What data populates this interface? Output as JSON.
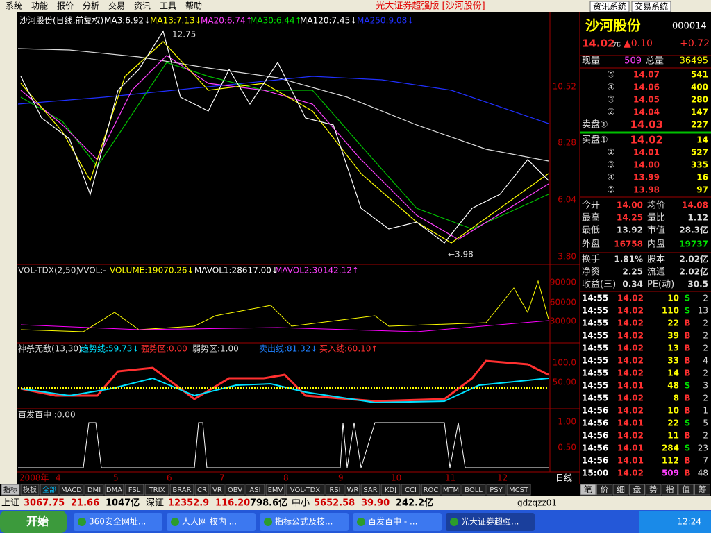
{
  "menu": {
    "items": [
      "系统",
      "功能",
      "报价",
      "分析",
      "交易",
      "资讯",
      "工具",
      "帮助"
    ],
    "title": "光大证券超强版 [沙河股份]",
    "buttons": [
      "资讯系统",
      "交易系统"
    ]
  },
  "chart": {
    "header": [
      "沙河股份(日线,前复权)",
      "MA3:6.92↓",
      "MA13:7.13↓",
      "MA20:6.74↑",
      "MA30:6.44↑",
      "MA120:7.45↓",
      "MA250:9.08↓"
    ],
    "price_axis": [
      "10.52",
      "8.28",
      "6.04",
      "3.80"
    ],
    "price_high": "12.75",
    "price_low": "←3.98",
    "volume_header": [
      "VOL-TDX(2,50)",
      "VVOL:-",
      "VOLUME:19070.26↓",
      "MAVOL1:28617.00↓",
      "MAVOL2:30142.12↑"
    ],
    "volume_axis": [
      "90000",
      "60000",
      "30000"
    ],
    "indicator_header": [
      "神杀无敌(13,30)",
      "趋势线:59.73↓",
      "强势区:0.00",
      "弱势区:1.00",
      "卖出线:81.32↓",
      "买入线:60.10↑"
    ],
    "indicator_axis": [
      "100.0",
      "50.00"
    ],
    "signal_header": "百发百中 :0.00",
    "signal_axis": [
      "1.00",
      "0.50"
    ],
    "date_axis": [
      "2008年",
      "4",
      "5",
      "6",
      "7",
      "8",
      "9",
      "10",
      "11",
      "12"
    ],
    "period": "日线"
  },
  "indicator_tabs": [
    "指标",
    "模板",
    "全部",
    "MACD",
    "DMI",
    "DMA",
    "FSL",
    "TRIX",
    "BRAR",
    "CR",
    "VR",
    "OBV",
    "ASI",
    "EMV",
    "VOL-TDX",
    "RSI",
    "WR",
    "SAR",
    "KDJ",
    "CCI",
    "ROC",
    "MTM",
    "BOLL",
    "PSY",
    "MCST"
  ],
  "quote": {
    "name": "沙河股份",
    "code": "000014",
    "price": "14.02",
    "unit": "元",
    "change": "▲0.10",
    "pct": "+0.72",
    "volume_row": [
      "现量",
      "509",
      "总量",
      "36495"
    ],
    "sell": [
      [
        "⑤",
        "14.07",
        "541"
      ],
      [
        "④",
        "14.06",
        "400"
      ],
      [
        "③",
        "14.05",
        "280"
      ],
      [
        "②",
        "14.04",
        "147"
      ],
      [
        "卖盘①",
        "14.03",
        "227"
      ]
    ],
    "buy": [
      [
        "买盘①",
        "14.02",
        "14"
      ],
      [
        "②",
        "14.01",
        "527"
      ],
      [
        "③",
        "14.00",
        "335"
      ],
      [
        "④",
        "13.99",
        "16"
      ],
      [
        "⑤",
        "13.98",
        "97"
      ]
    ],
    "stats": [
      [
        "今开",
        "14.00",
        "均价",
        "14.08"
      ],
      [
        "最高",
        "14.25",
        "量比",
        "1.12"
      ],
      [
        "最低",
        "13.92",
        "市值",
        "28.3亿"
      ],
      [
        "外盘",
        "16758",
        "内盘",
        "19737"
      ]
    ],
    "stats2": [
      [
        "换手",
        "1.81%",
        "股本",
        "2.02亿"
      ],
      [
        "净资",
        "2.25",
        "流通",
        "2.02亿"
      ],
      [
        "收益(三)",
        "0.34",
        "PE(动)",
        "30.5"
      ]
    ],
    "ticks": [
      [
        "14:55",
        "14.02",
        "10",
        "S",
        "2"
      ],
      [
        "14:55",
        "14.02",
        "110",
        "S",
        "13"
      ],
      [
        "14:55",
        "14.02",
        "22",
        "B",
        "2"
      ],
      [
        "14:55",
        "14.02",
        "39",
        "B",
        "2"
      ],
      [
        "14:55",
        "14.02",
        "13",
        "B",
        "2"
      ],
      [
        "14:55",
        "14.02",
        "33",
        "B",
        "4"
      ],
      [
        "14:55",
        "14.02",
        "14",
        "B",
        "2"
      ],
      [
        "14:55",
        "14.01",
        "48",
        "S",
        "3"
      ],
      [
        "14:55",
        "14.02",
        "8",
        "B",
        "2"
      ],
      [
        "14:56",
        "14.02",
        "10",
        "B",
        "1"
      ],
      [
        "14:56",
        "14.01",
        "22",
        "S",
        "5"
      ],
      [
        "14:56",
        "14.02",
        "11",
        "B",
        "2"
      ],
      [
        "14:56",
        "14.01",
        "284",
        "S",
        "23"
      ],
      [
        "14:56",
        "14.01",
        "112",
        "B",
        "7"
      ],
      [
        "15:00",
        "14.02",
        "509",
        "B",
        "48"
      ]
    ],
    "tabs": [
      "笔",
      "价",
      "细",
      "盘",
      "势",
      "指",
      "值",
      "筹"
    ]
  },
  "status": [
    [
      "上证",
      "3067.75",
      "21.66",
      "1047亿"
    ],
    [
      "深证",
      "12352.9",
      "116.20",
      "798.6亿"
    ],
    [
      "中小",
      "5652.58",
      "39.90",
      "242.2亿"
    ]
  ],
  "status_user": "gdzqzz01",
  "taskbar": {
    "start": "开始",
    "tasks": [
      "360安全网址...",
      "人人网 校内 ...",
      "指标公式及技...",
      "百发百中 - ...",
      "光大证券超强..."
    ],
    "clock": "12:24"
  }
}
